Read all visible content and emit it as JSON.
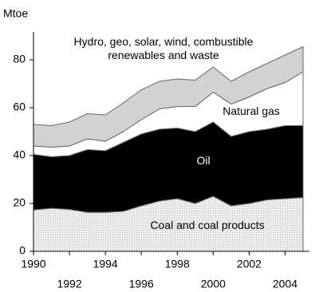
{
  "chart_data": {
    "type": "stacked-area",
    "y_label": "Mtoe",
    "x": [
      1990,
      1991,
      1992,
      1993,
      1994,
      1995,
      1996,
      1997,
      1998,
      1999,
      2000,
      2001,
      2002,
      2003,
      2004,
      2005
    ],
    "series": [
      {
        "name": "Coal and coal products",
        "color": "#e6e6e6",
        "values": [
          17.3,
          18,
          17.5,
          16.3,
          16.3,
          16.7,
          19,
          21,
          22,
          20,
          23,
          19,
          20,
          21.5,
          22,
          22.5
        ]
      },
      {
        "name": "Oil",
        "color": "#000000",
        "values": [
          23.2,
          21.5,
          22.5,
          26.2,
          25.7,
          28.8,
          30,
          30,
          29.5,
          30,
          31,
          29,
          30,
          29.5,
          30.5,
          30
        ]
      },
      {
        "name": "Natural gas",
        "color": "#ffffff",
        "values": [
          3.5,
          4,
          4,
          4.5,
          4,
          4.5,
          6,
          8.5,
          9,
          10.5,
          12.5,
          13.5,
          14.5,
          17,
          18,
          22.5
        ]
      },
      {
        "name": "Hydro, geo, solar, wind, combustible renewables and waste",
        "color": "#d2d2d2",
        "values": [
          9,
          9,
          10,
          10.5,
          11,
          12,
          12.5,
          11.5,
          11.5,
          11,
          10.5,
          9.5,
          10.5,
          10.5,
          11.5,
          10.5
        ]
      }
    ],
    "xlim": [
      1990,
      2005
    ],
    "ylim": [
      0,
      90
    ],
    "xticks": [
      1990,
      1992,
      1994,
      1996,
      1998,
      2000,
      2002,
      2004
    ],
    "yticks": [
      0,
      20,
      40,
      60,
      80
    ]
  }
}
